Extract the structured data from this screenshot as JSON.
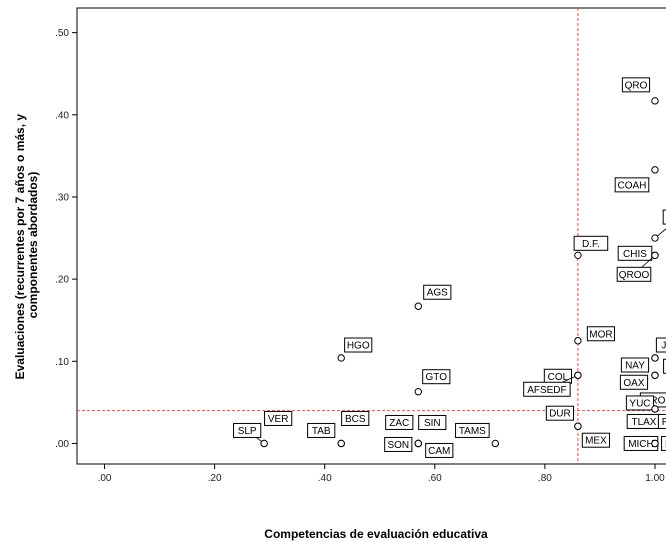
{
  "chart_data": {
    "type": "scatter",
    "xlabel": "Competencias de evaluación educativa",
    "ylabel_lines": [
      "Evaluaciones (recurrentes por 7 años o más, y",
      "componentes abordados)"
    ],
    "xlim": [
      -0.05,
      1.04
    ],
    "ylim": [
      -0.025,
      0.53
    ],
    "x_ticks": [
      0.0,
      0.2,
      0.4,
      0.6,
      0.8,
      1.0
    ],
    "x_tick_labels": [
      ".00",
      ".20",
      ".40",
      ".60",
      ".80",
      "1.00"
    ],
    "y_ticks": [
      0.0,
      0.1,
      0.2,
      0.3,
      0.4,
      0.5
    ],
    "y_tick_labels": [
      ".00",
      ".10",
      ".20",
      ".30",
      ".40",
      ".50"
    ],
    "reference_lines": {
      "x": 0.86,
      "y": 0.04,
      "style": "dashed",
      "color": "#d9534f"
    },
    "points": [
      {
        "label": "SLP",
        "x": 0.29,
        "y": 0.0
      },
      {
        "label": "VER",
        "x": 0.29,
        "y": 0.0
      },
      {
        "label": "TAB",
        "x": 0.43,
        "y": 0.0
      },
      {
        "label": "BCS",
        "x": 0.43,
        "y": 0.0
      },
      {
        "label": "ZAC",
        "x": 0.57,
        "y": 0.0
      },
      {
        "label": "SIN",
        "x": 0.57,
        "y": 0.0
      },
      {
        "label": "SON",
        "x": 0.57,
        "y": 0.0
      },
      {
        "label": "CAM",
        "x": 0.57,
        "y": 0.0
      },
      {
        "label": "TAMS",
        "x": 0.71,
        "y": 0.0
      },
      {
        "label": "GTO",
        "x": 0.57,
        "y": 0.063
      },
      {
        "label": "AGS",
        "x": 0.57,
        "y": 0.167
      },
      {
        "label": "HGO",
        "x": 0.43,
        "y": 0.104
      },
      {
        "label": "D.F.",
        "x": 0.86,
        "y": 0.229
      },
      {
        "label": "MOR",
        "x": 0.86,
        "y": 0.125
      },
      {
        "label": "COL",
        "x": 0.86,
        "y": 0.083
      },
      {
        "label": "AFSEDF",
        "x": 0.86,
        "y": 0.083
      },
      {
        "label": "DUR",
        "x": 0.86,
        "y": 0.021
      },
      {
        "label": "MEX",
        "x": 0.86,
        "y": 0.021
      },
      {
        "label": "QRO",
        "x": 1.0,
        "y": 0.417
      },
      {
        "label": "COAH",
        "x": 1.0,
        "y": 0.333
      },
      {
        "label": "CHIH",
        "x": 1.0,
        "y": 0.25
      },
      {
        "label": "CHIS",
        "x": 1.0,
        "y": 0.229
      },
      {
        "label": "QROO",
        "x": 1.0,
        "y": 0.229
      },
      {
        "label": "JAL",
        "x": 1.0,
        "y": 0.104
      },
      {
        "label": "NAY",
        "x": 1.0,
        "y": 0.104
      },
      {
        "label": "NL",
        "x": 1.0,
        "y": 0.083
      },
      {
        "label": "OAX",
        "x": 1.0,
        "y": 0.083
      },
      {
        "label": "GRO",
        "x": 1.0,
        "y": 0.042
      },
      {
        "label": "YUC",
        "x": 1.0,
        "y": 0.042
      },
      {
        "label": "TLAX",
        "x": 1.0,
        "y": 0.0
      },
      {
        "label": "PUE",
        "x": 1.0,
        "y": 0.0
      },
      {
        "label": "MICH",
        "x": 1.0,
        "y": 0.0
      },
      {
        "label": "BC",
        "x": 1.0,
        "y": 0.0
      }
    ]
  }
}
